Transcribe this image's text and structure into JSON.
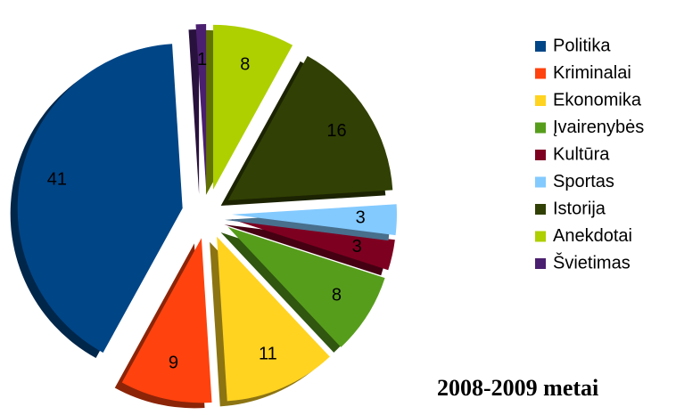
{
  "chart_data": {
    "type": "pie",
    "title": "2008-2009 metai",
    "categories": [
      "Politika",
      "Kriminalai",
      "Ekonomika",
      "Įvairenybės",
      "Kultūra",
      "Sportas",
      "Istorija",
      "Anekdotai",
      "Švietimas"
    ],
    "values": [
      41,
      9,
      11,
      8,
      3,
      3,
      16,
      8,
      1
    ],
    "colors": [
      "#004586",
      "#ff420e",
      "#ffd320",
      "#579d1c",
      "#7e0021",
      "#83caff",
      "#314004",
      "#aecf00",
      "#4b1f6f"
    ],
    "legend": "right"
  }
}
